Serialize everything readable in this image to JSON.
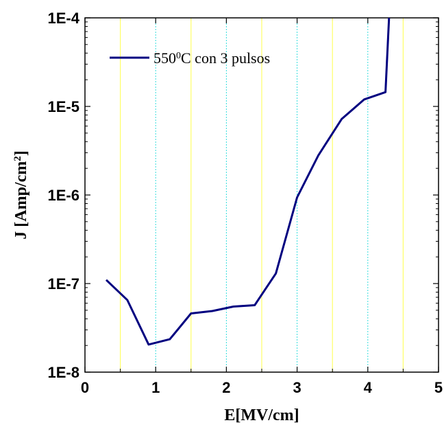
{
  "chart_data": {
    "type": "line",
    "xlabel": "E[MV/cm]",
    "ylabel_main": "J [Amp/cm",
    "ylabel_sup": "2",
    "ylabel_end": "]",
    "xlim": [
      0,
      5
    ],
    "ylim": [
      1e-08,
      0.0001
    ],
    "yscale": "log",
    "x_ticks": [
      0,
      1,
      2,
      3,
      4,
      5
    ],
    "x_tick_labels": [
      "0",
      "1",
      "2",
      "3",
      "4",
      "5"
    ],
    "y_ticks": [
      1e-08,
      1e-07,
      1e-06,
      1e-05,
      0.0001
    ],
    "y_tick_labels": [
      "1E-8",
      "1E-7",
      "1E-6",
      "1E-5",
      "1E-4"
    ],
    "grid": {
      "on": true,
      "half_lines": [
        0.5,
        1.5,
        2.5,
        3.5,
        4.5
      ],
      "half_color": "#ffff66",
      "unit_lines": [
        1,
        2,
        3,
        4
      ],
      "unit_color": "#33dddd"
    },
    "legend": {
      "position": "top-left",
      "main": "550",
      "sup": "0",
      "rest": "C con 3 pulsos"
    },
    "series": [
      {
        "color": "#000080",
        "x": [
          0.3,
          0.6,
          0.9,
          1.2,
          1.5,
          1.8,
          2.1,
          2.4,
          2.7,
          3.0,
          3.3,
          3.63,
          3.95,
          4.25,
          4.3
        ],
        "y": [
          1.1e-07,
          6.5e-08,
          2.05e-08,
          2.35e-08,
          4.6e-08,
          4.9e-08,
          5.5e-08,
          5.7e-08,
          1.3e-07,
          9.4e-07,
          2.8e-06,
          7.2e-06,
          1.2e-05,
          1.45e-05,
          0.0001
        ]
      }
    ]
  }
}
